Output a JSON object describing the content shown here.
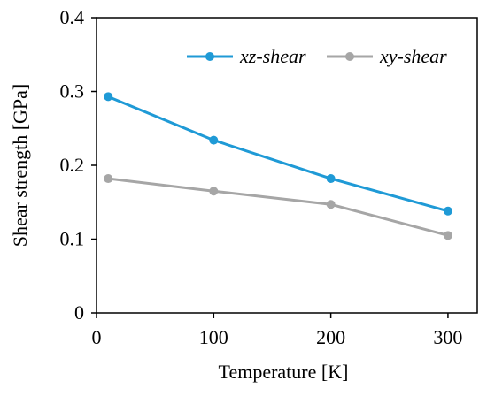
{
  "chart_data": {
    "type": "line",
    "title": "",
    "xlabel": "Temperature [K]",
    "ylabel": "Shear strength [GPa]",
    "xlim": [
      0,
      325
    ],
    "ylim": [
      0,
      0.4
    ],
    "xticks": [
      0,
      100,
      200,
      300
    ],
    "yticks": [
      0,
      0.1,
      0.2,
      0.3,
      0.4
    ],
    "xtick_labels": [
      "0",
      "100",
      "200",
      "300"
    ],
    "ytick_labels": [
      "0",
      "0.1",
      "0.2",
      "0.3",
      "0.4"
    ],
    "grid": false,
    "legend_position": "top-right",
    "series": [
      {
        "name": "xz-shear",
        "color": "#1f9ad6",
        "x": [
          10,
          100,
          200,
          300
        ],
        "y": [
          0.293,
          0.234,
          0.182,
          0.138
        ]
      },
      {
        "name": "xy-shear",
        "color": "#a6a6a6",
        "x": [
          10,
          100,
          200,
          300
        ],
        "y": [
          0.182,
          0.165,
          0.147,
          0.105
        ]
      }
    ]
  }
}
